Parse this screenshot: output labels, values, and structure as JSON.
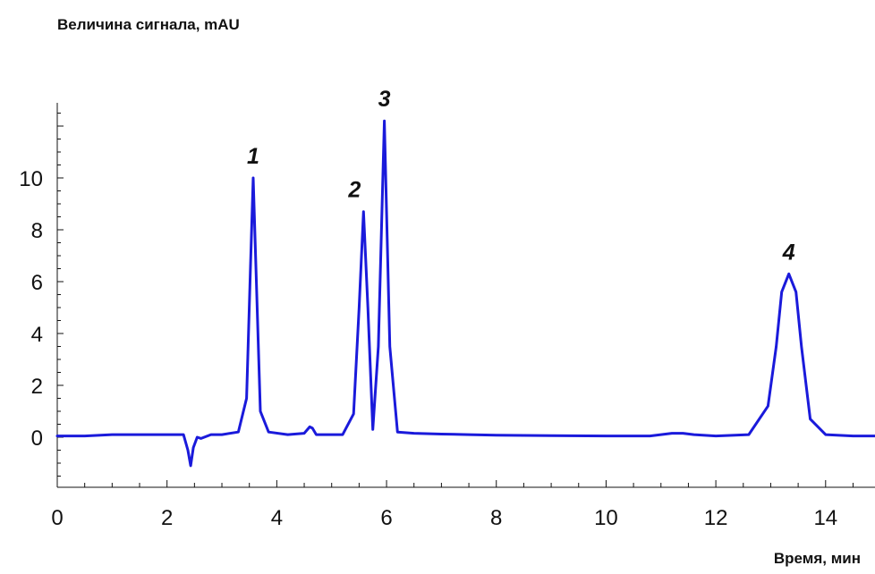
{
  "chart_data": {
    "type": "line",
    "ylabel": "Величина сигнала, mAU",
    "xlabel": "Время, мин",
    "xlim": [
      0,
      14.9
    ],
    "ylim": [
      -2,
      13
    ],
    "x_ticks": [
      0,
      2,
      4,
      6,
      8,
      10,
      12,
      14
    ],
    "y_ticks": [
      0,
      2,
      4,
      6,
      8,
      10
    ],
    "grid": false,
    "line_color": "#1a1adb",
    "baseline": 0.05,
    "peaks": [
      {
        "label": "1",
        "x": 3.57,
        "y": 10.0
      },
      {
        "label": "2",
        "x": 5.58,
        "y": 8.7
      },
      {
        "label": "3",
        "x": 5.96,
        "y": 12.2
      },
      {
        "label": "4",
        "x": 13.33,
        "y": 6.3
      }
    ],
    "series": [
      {
        "x": [
          0,
          0.5,
          1.0,
          1.5,
          2.0,
          2.3,
          2.38,
          2.43,
          2.48,
          2.55,
          2.62,
          2.8,
          3.0,
          3.3,
          3.45,
          3.52,
          3.57,
          3.62,
          3.7,
          3.85,
          4.2,
          4.5,
          4.6,
          4.65,
          4.72,
          4.9,
          5.2,
          5.4,
          5.5,
          5.58,
          5.66,
          5.75,
          5.85,
          5.96,
          6.06,
          6.2,
          6.5,
          7.0,
          7.5,
          8.0,
          9.0,
          10.0,
          10.8,
          11.2,
          11.4,
          11.6,
          12.0,
          12.6,
          12.95,
          13.1,
          13.2,
          13.33,
          13.46,
          13.56,
          13.72,
          14.0,
          14.5,
          14.9
        ],
        "y": [
          0.05,
          0.05,
          0.1,
          0.1,
          0.1,
          0.1,
          -0.5,
          -1.1,
          -0.4,
          0.0,
          -0.05,
          0.1,
          0.1,
          0.2,
          1.5,
          6.5,
          10.0,
          6.5,
          1.0,
          0.2,
          0.1,
          0.15,
          0.4,
          0.35,
          0.1,
          0.1,
          0.1,
          0.9,
          5.0,
          8.7,
          5.0,
          0.3,
          3.5,
          12.2,
          3.5,
          0.2,
          0.15,
          0.12,
          0.1,
          0.08,
          0.06,
          0.05,
          0.05,
          0.15,
          0.15,
          0.1,
          0.05,
          0.1,
          1.2,
          3.5,
          5.6,
          6.3,
          5.6,
          3.5,
          0.7,
          0.1,
          0.05,
          0.05
        ]
      }
    ]
  }
}
